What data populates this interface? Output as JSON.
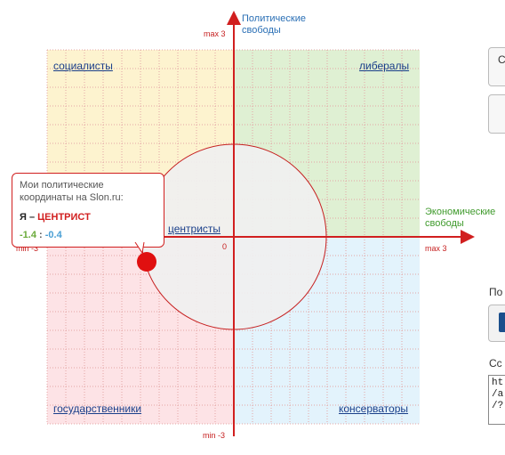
{
  "chart": {
    "y_axis_title_line1": "Политические",
    "y_axis_title_line2": "свободы",
    "x_axis_title_line1": "Экономические",
    "x_axis_title_line2": "свободы",
    "max_y": "max 3",
    "min_y": "min -3",
    "max_x": "max 3",
    "min_x": "min -3",
    "origin": "0",
    "quadrants": {
      "top_left": "социалисты",
      "top_right": "либералы",
      "bottom_left": "государственники",
      "bottom_right": "консерваторы",
      "center": "центристы"
    }
  },
  "callout": {
    "line1": "Мои политические",
    "line2": "координаты на Slon.ru:",
    "me_prefix": "Я – ",
    "me_label": "ЦЕНТРИСТ",
    "x_value": "-1.4",
    "separator": " : ",
    "y_value": "-0.4"
  },
  "colors": {
    "socialists": "#fdf3cf",
    "liberals": "#dff0d3",
    "statists": "#fde3e6",
    "conservatives": "#e3f3fc",
    "axis": "#d11f1f",
    "center_circle": "#f0f0f0"
  },
  "sidebar": {
    "button1_char": "С",
    "label_share": "По",
    "label_link": "Сс",
    "textarea_lines": [
      "ht",
      "/a",
      "/?"
    ]
  },
  "chart_data": {
    "type": "scatter",
    "xlabel": "Экономические свободы",
    "ylabel": "Политические свободы",
    "xlim": [
      -3,
      3
    ],
    "ylim": [
      -3,
      3
    ],
    "grid": true,
    "points": [
      {
        "x": -1.4,
        "y": -0.4,
        "label": "Я – ЦЕНТРИСТ"
      }
    ],
    "regions": [
      "социалисты",
      "либералы",
      "государственники",
      "консерваторы",
      "центристы"
    ]
  }
}
